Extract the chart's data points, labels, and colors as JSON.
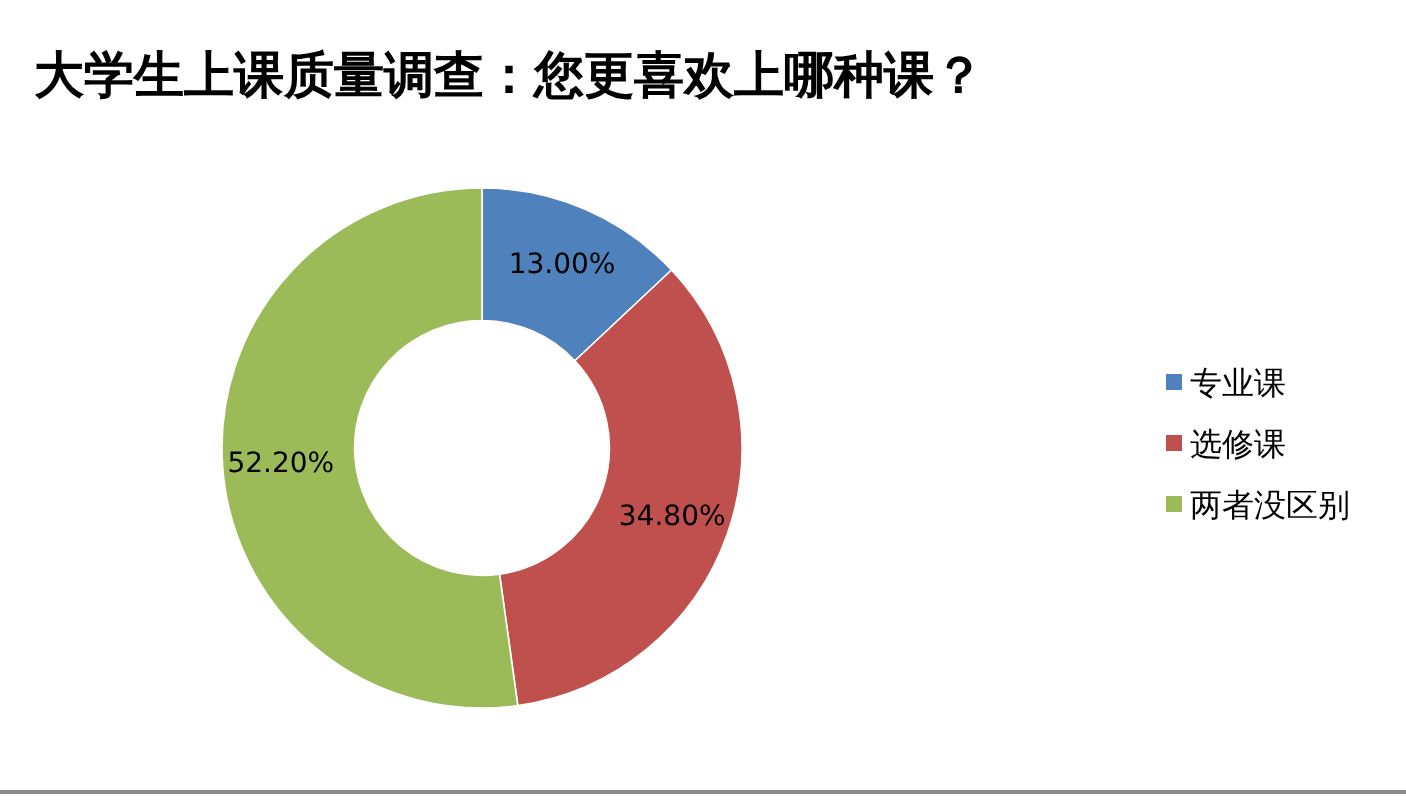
{
  "chart_data": {
    "type": "donut",
    "title": "大学生上课质量调查：您更喜欢上哪种课？",
    "categories": [
      "专业课",
      "选修课",
      "两者没区别"
    ],
    "values": [
      13,
      34.8,
      52.2
    ],
    "colors": [
      "#4f81bd",
      "#c0504d",
      "#9bbb59"
    ],
    "value_labels": [
      "13.00%",
      "34.80%",
      "52.20%"
    ],
    "legend": "right"
  }
}
